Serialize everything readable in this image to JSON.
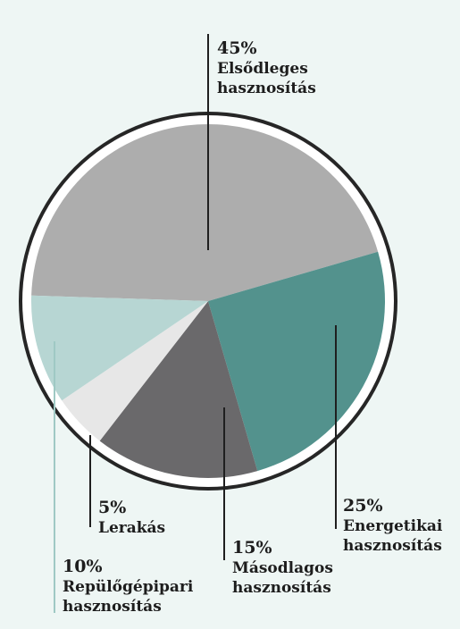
{
  "chart_data": {
    "type": "pie",
    "title": "",
    "legend": "none",
    "slices": [
      {
        "value": 45,
        "percent_label": "45%",
        "label_lines": [
          "Elsődleges",
          "hasznosítás"
        ],
        "color": "#adadad"
      },
      {
        "value": 25,
        "percent_label": "25%",
        "label_lines": [
          "Energetikai",
          "hasznosítás"
        ],
        "color": "#53928d"
      },
      {
        "value": 15,
        "percent_label": "15%",
        "label_lines": [
          "Másodlagos",
          "hasznosítás"
        ],
        "color": "#6a696b"
      },
      {
        "value": 5,
        "percent_label": "5%",
        "label_lines": [
          "Lerakás"
        ],
        "color": "#e7e7e7"
      },
      {
        "value": 10,
        "percent_label": "10%",
        "label_lines": [
          "Repülőgépipari",
          "hasznosítás"
        ],
        "color": "#b7d6d3"
      }
    ]
  },
  "colors": {
    "background": "#eef6f4",
    "ring_outer": "#262626",
    "ring_inner": "#ffffff",
    "leader_dark": "#1f1f1f",
    "leader_light": "#9fc9c4"
  }
}
